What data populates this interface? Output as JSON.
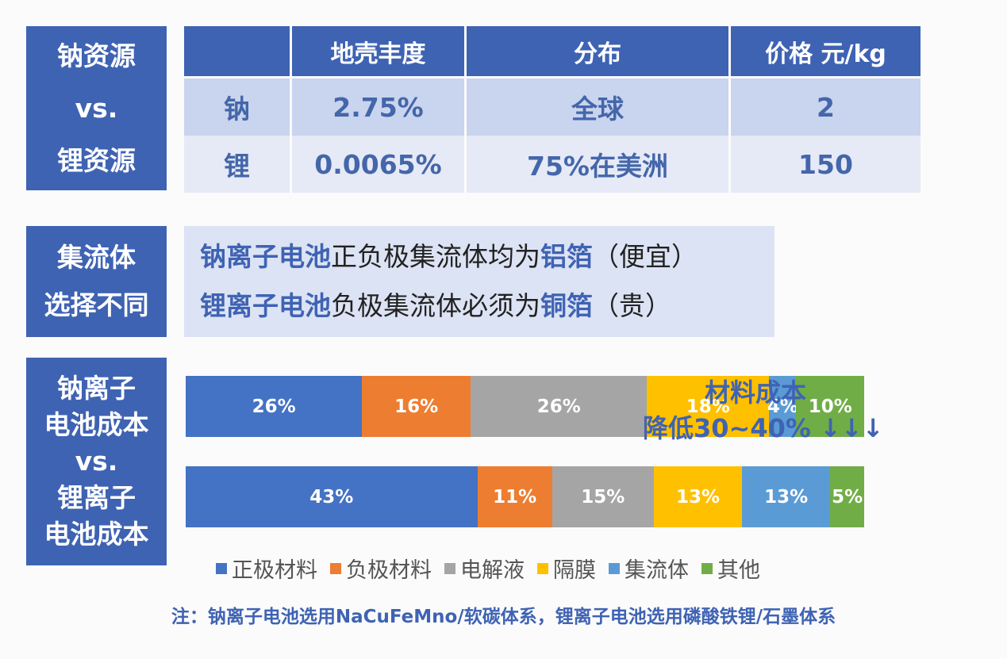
{
  "labels": {
    "resource": [
      "钠资源",
      "vs.",
      "锂资源"
    ],
    "collector": [
      "集流体",
      "选择不同"
    ],
    "cost": [
      "钠离子",
      "电池成本",
      "vs.",
      "锂离子",
      "电池成本"
    ]
  },
  "resource_table": {
    "headers": [
      "",
      "地壳丰度",
      "分布",
      "价格 元/kg"
    ],
    "rows": [
      [
        "钠",
        "2.75%",
        "全球",
        "2"
      ],
      [
        "锂",
        "0.0065%",
        "75%在美洲",
        "150"
      ]
    ]
  },
  "collector_text": {
    "line1": [
      "钠离子电池",
      "正负极集流体均为",
      "铝箔",
      "（便宜）"
    ],
    "line2": [
      "锂离子电池",
      "负极集流体必须为",
      "铜箔",
      "（贵）"
    ]
  },
  "colors": {
    "label_bg": "#3f63b3",
    "series": [
      "#4472c4",
      "#ed7d31",
      "#a5a5a5",
      "#ffc000",
      "#5b9bd5",
      "#70ad47"
    ]
  },
  "chart_data": {
    "type": "bar",
    "orientation": "horizontal-stacked",
    "categories": [
      "钠离子电池",
      "锂离子电池"
    ],
    "series": [
      {
        "name": "正极材料",
        "values": [
          26,
          43
        ]
      },
      {
        "name": "负极材料",
        "values": [
          16,
          11
        ]
      },
      {
        "name": "电解液",
        "values": [
          26,
          15
        ]
      },
      {
        "name": "隔膜",
        "values": [
          18,
          13
        ]
      },
      {
        "name": "集流体",
        "values": [
          4,
          13
        ]
      },
      {
        "name": "其他",
        "values": [
          10,
          5
        ]
      }
    ],
    "legend_position": "bottom",
    "annotation": [
      "材料成本",
      "降低30~40% ↓↓↓"
    ]
  },
  "note": "注：钠离子电池选用NaCuFeMno/软碳体系，锂离子电池选用磷酸铁锂/石墨体系"
}
